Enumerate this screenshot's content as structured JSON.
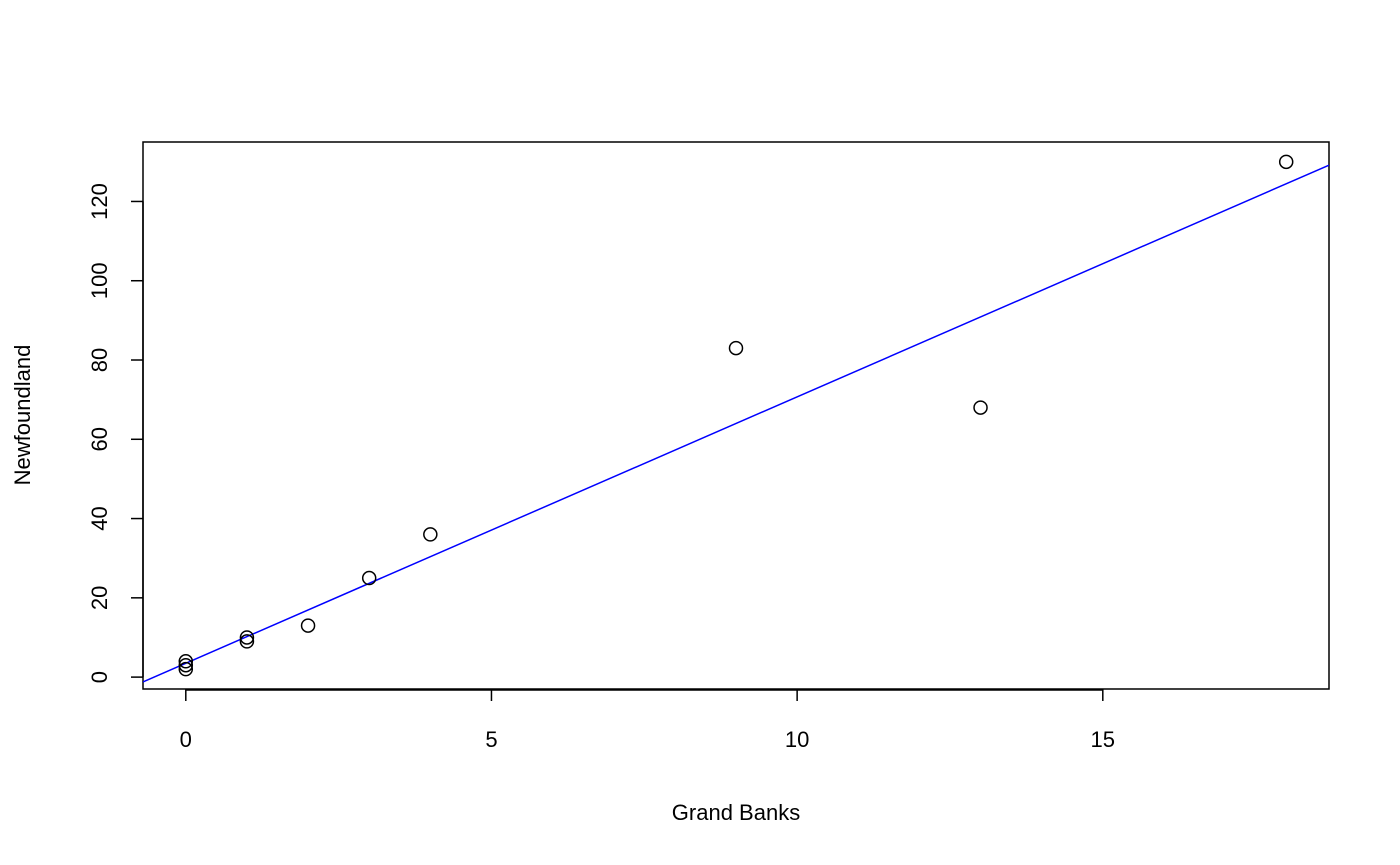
{
  "chart_data": {
    "type": "scatter",
    "title": "",
    "xlabel": "Grand Banks",
    "ylabel": "Newfoundland",
    "xlim": [
      -0.7,
      18.7
    ],
    "ylim": [
      -3,
      135
    ],
    "x_ticks": [
      0,
      5,
      10,
      15
    ],
    "y_ticks": [
      0,
      20,
      40,
      60,
      80,
      100,
      120
    ],
    "grid": false,
    "series": [
      {
        "points": [
          {
            "x": 0,
            "y": 2
          },
          {
            "x": 0,
            "y": 3
          },
          {
            "x": 0,
            "y": 4
          },
          {
            "x": 1,
            "y": 9
          },
          {
            "x": 1,
            "y": 10
          },
          {
            "x": 2,
            "y": 13
          },
          {
            "x": 3,
            "y": 25
          },
          {
            "x": 4,
            "y": 36
          },
          {
            "x": 9,
            "y": 83
          },
          {
            "x": 13,
            "y": 68
          },
          {
            "x": 18,
            "y": 130
          }
        ],
        "marker": "open-circle",
        "color": "#000000"
      }
    ],
    "fit_line": {
      "intercept": 3.5,
      "slope": 6.72,
      "color": "#0000ff"
    }
  }
}
